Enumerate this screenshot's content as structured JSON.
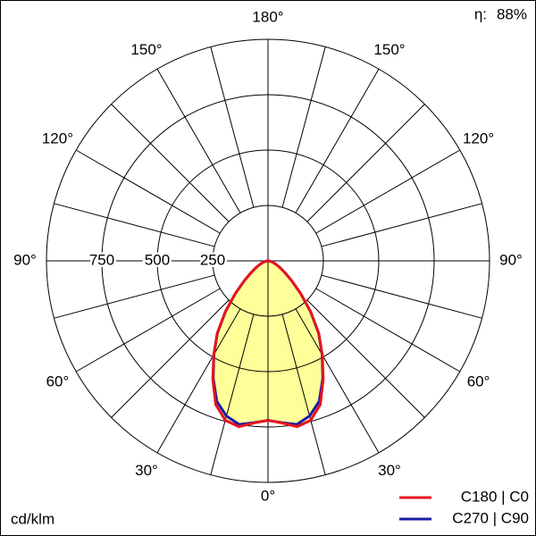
{
  "chart_data": {
    "type": "polar",
    "unit_label": "cd/klm",
    "efficiency_label": "η:",
    "efficiency": 88,
    "efficiency_value_label": "88%",
    "rlim": [
      0,
      1000
    ],
    "rticks": [
      250,
      500,
      750
    ],
    "angle_ticks": [
      {
        "value": 0,
        "label": "0°"
      },
      {
        "value": 30,
        "label": "30°"
      },
      {
        "value": 60,
        "label": "60°"
      },
      {
        "value": 90,
        "label": "90°"
      },
      {
        "value": 120,
        "label": "120°"
      },
      {
        "value": 150,
        "label": "150°"
      },
      {
        "value": 180,
        "label": "180°"
      }
    ],
    "fill_color": "#ffff99",
    "x": [
      0,
      5,
      10,
      15,
      20,
      25,
      30,
      35,
      40,
      45,
      50,
      55,
      60,
      65,
      70,
      75,
      80,
      85,
      90
    ],
    "series": [
      {
        "name": "C180 | C0",
        "color": "#e8141c",
        "values": [
          720,
          735,
          760,
          745,
          690,
          590,
          490,
          400,
          300,
          210,
          140,
          95,
          65,
          45,
          30,
          18,
          10,
          4,
          0
        ]
      },
      {
        "name": "C270 | C90",
        "color": "#1c1ca8",
        "values": [
          720,
          733,
          750,
          725,
          675,
          585,
          488,
          398,
          298,
          208,
          139,
          94,
          64,
          44,
          29,
          17,
          9,
          4,
          0
        ]
      }
    ]
  }
}
